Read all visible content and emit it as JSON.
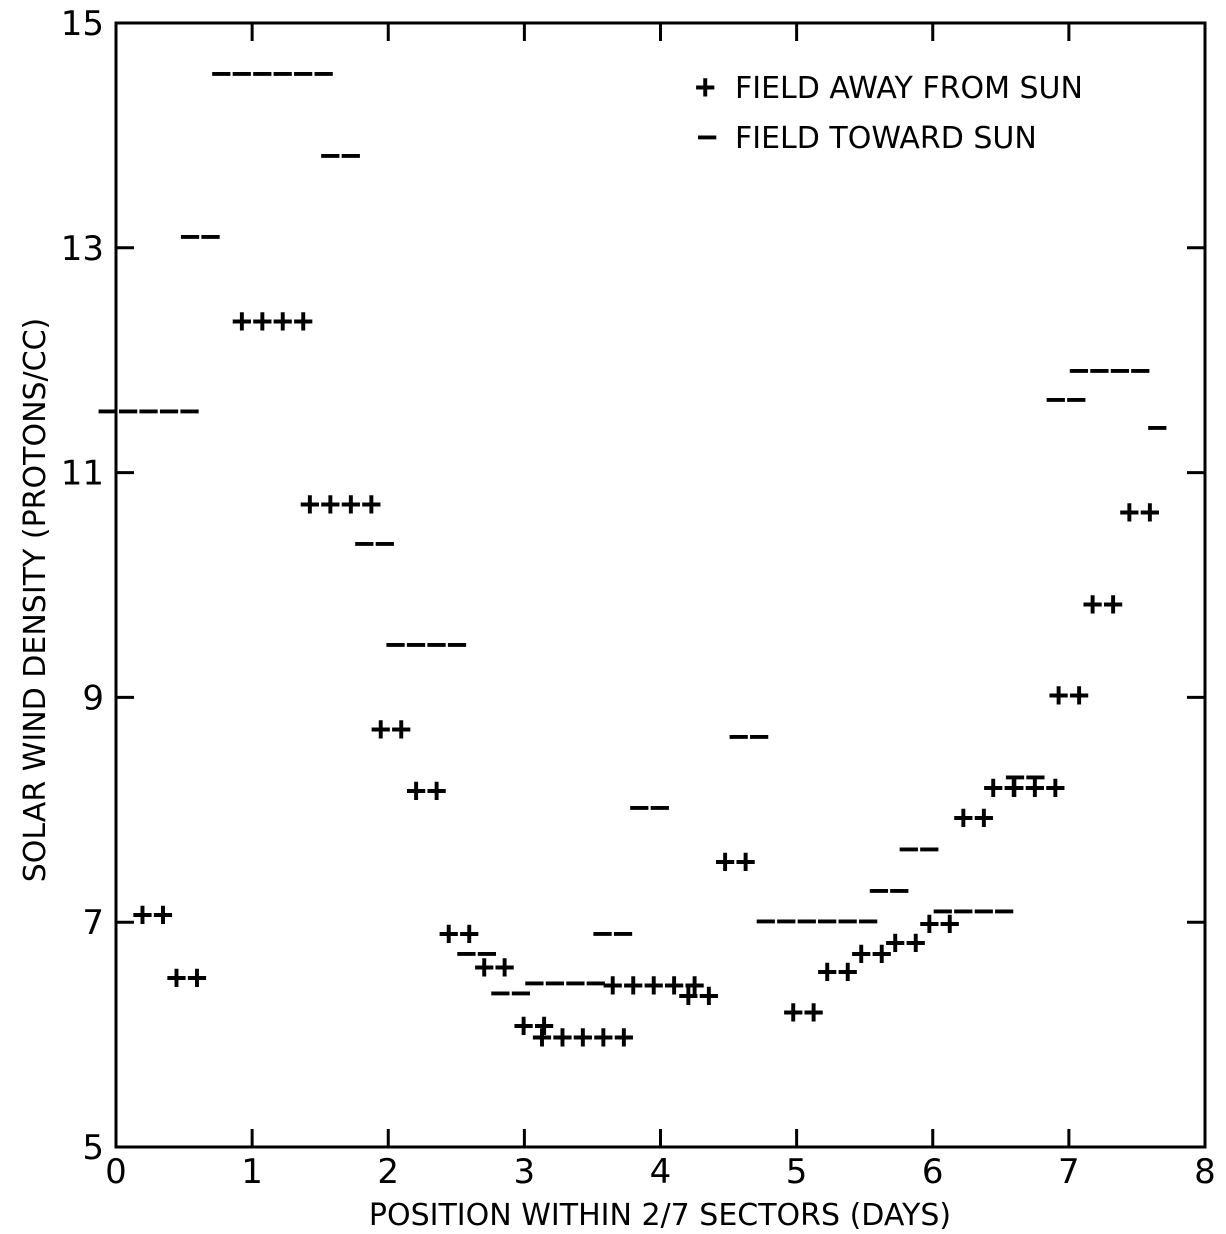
{
  "chart_data": {
    "type": "scatter",
    "title": "",
    "xlabel": "POSITION WITHIN 2/7 SECTORS (DAYS)",
    "ylabel": "SOLAR WIND DENSITY (PROTONS/CC)",
    "xlim": [
      0,
      8
    ],
    "ylim": [
      5,
      15
    ],
    "x_ticks": [
      0,
      1,
      2,
      3,
      4,
      5,
      6,
      7,
      8
    ],
    "x_tick_labels": [
      "0",
      "1",
      "2",
      "3",
      "4",
      "5",
      "6",
      "7",
      "8"
    ],
    "y_ticks": [
      5,
      7,
      9,
      11,
      13,
      15
    ],
    "y_tick_labels": [
      "5",
      "7",
      "9",
      "11",
      "13",
      "15"
    ],
    "grid": false,
    "legend_position": "top-right",
    "series": [
      {
        "name": "FIELD AWAY FROM SUN",
        "marker": "+",
        "points": [
          {
            "x": 0.27,
            "y": 7.07,
            "label": "++"
          },
          {
            "x": 0.52,
            "y": 6.51,
            "label": "++"
          },
          {
            "x": 1.15,
            "y": 12.35,
            "label": "++++"
          },
          {
            "x": 1.65,
            "y": 10.72,
            "label": "++++"
          },
          {
            "x": 2.02,
            "y": 8.72,
            "label": "++"
          },
          {
            "x": 2.28,
            "y": 8.17,
            "label": "++"
          },
          {
            "x": 2.52,
            "y": 6.9,
            "label": "++"
          },
          {
            "x": 2.78,
            "y": 6.6,
            "label": "++"
          },
          {
            "x": 3.07,
            "y": 6.08,
            "label": "++"
          },
          {
            "x": 3.43,
            "y": 5.98,
            "label": "+++++"
          },
          {
            "x": 3.95,
            "y": 6.44,
            "label": "+++++"
          },
          {
            "x": 4.28,
            "y": 6.35,
            "label": "++"
          },
          {
            "x": 4.55,
            "y": 7.54,
            "label": "++"
          },
          {
            "x": 5.05,
            "y": 6.2,
            "label": "++"
          },
          {
            "x": 5.3,
            "y": 6.56,
            "label": "++"
          },
          {
            "x": 5.55,
            "y": 6.72,
            "label": "++"
          },
          {
            "x": 5.8,
            "y": 6.82,
            "label": "++"
          },
          {
            "x": 6.05,
            "y": 6.99,
            "label": "++"
          },
          {
            "x": 6.3,
            "y": 7.93,
            "label": "++"
          },
          {
            "x": 6.52,
            "y": 8.2,
            "label": "++"
          },
          {
            "x": 6.75,
            "y": 8.2,
            "label": "+++"
          },
          {
            "x": 7.0,
            "y": 9.02,
            "label": "++"
          },
          {
            "x": 7.25,
            "y": 9.83,
            "label": "++"
          },
          {
            "x": 7.52,
            "y": 10.65,
            "label": "++"
          }
        ]
      },
      {
        "name": "FIELD TOWARD SUN",
        "marker": "−",
        "points": [
          {
            "x": 0.24,
            "y": 11.55,
            "label": "−−−−−"
          },
          {
            "x": 0.62,
            "y": 13.1,
            "label": "−−"
          },
          {
            "x": 1.15,
            "y": 14.55,
            "label": "−−−−−−"
          },
          {
            "x": 1.65,
            "y": 13.82,
            "label": "−−"
          },
          {
            "x": 1.9,
            "y": 10.37,
            "label": "−−"
          },
          {
            "x": 2.28,
            "y": 9.47,
            "label": "−−−−"
          },
          {
            "x": 2.65,
            "y": 6.72,
            "label": "−−"
          },
          {
            "x": 2.9,
            "y": 6.37,
            "label": "−−"
          },
          {
            "x": 3.3,
            "y": 6.46,
            "label": "−−−−"
          },
          {
            "x": 3.65,
            "y": 6.9,
            "label": "−−"
          },
          {
            "x": 3.92,
            "y": 8.02,
            "label": "−−"
          },
          {
            "x": 4.65,
            "y": 8.65,
            "label": "−−"
          },
          {
            "x": 5.15,
            "y": 7.01,
            "label": "−−−−−−"
          },
          {
            "x": 5.68,
            "y": 7.28,
            "label": "−−"
          },
          {
            "x": 5.9,
            "y": 7.65,
            "label": "−−"
          },
          {
            "x": 6.3,
            "y": 7.1,
            "label": "−−−−"
          },
          {
            "x": 6.68,
            "y": 8.29,
            "label": "−−"
          },
          {
            "x": 6.98,
            "y": 11.65,
            "label": "−−"
          },
          {
            "x": 7.3,
            "y": 11.91,
            "label": "−−−−"
          },
          {
            "x": 7.65,
            "y": 11.4,
            "label": "−"
          }
        ]
      }
    ]
  }
}
